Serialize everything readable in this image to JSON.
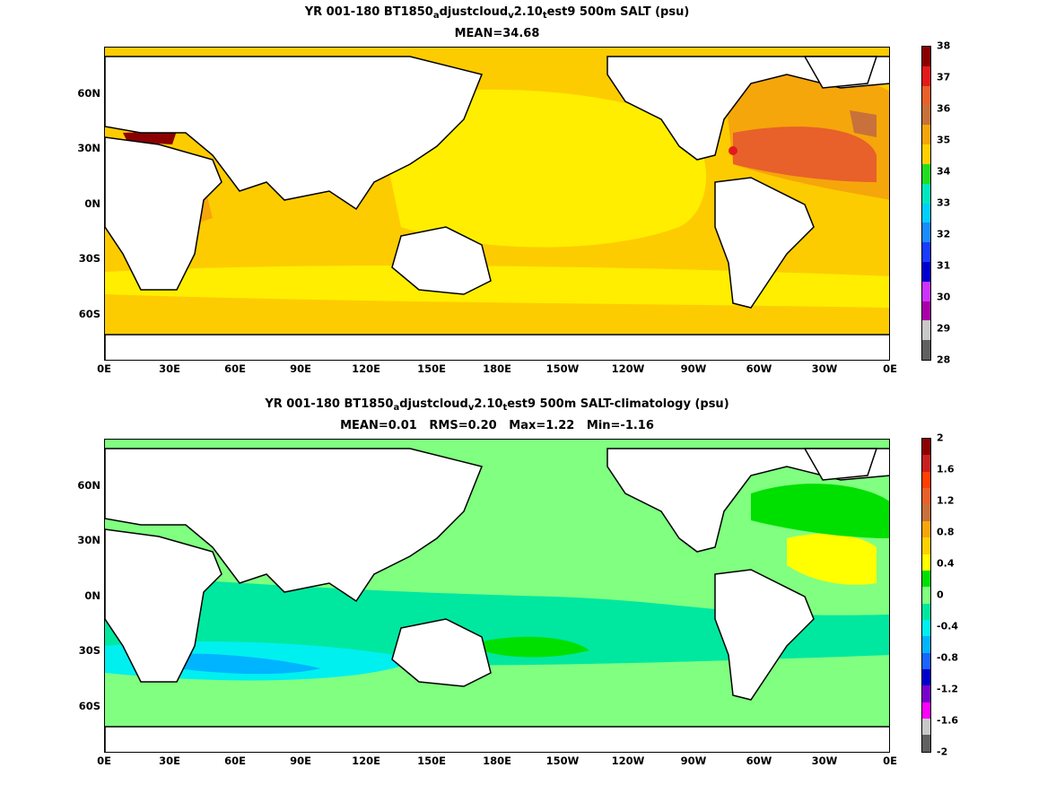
{
  "top": {
    "title_parts": [
      "YR 001-180 BT1850",
      "a",
      "djustcloud",
      "v",
      "2.10",
      "t",
      "est9 500m SALT (psu)"
    ],
    "stats": "MEAN=34.68",
    "colorbar_labels": [
      "38",
      "37",
      "36",
      "35",
      "34",
      "33",
      "32",
      "31",
      "30",
      "29",
      "28"
    ],
    "colorbar_colors": [
      "#8b0000",
      "#e31a1c",
      "#e8602a",
      "#c8713a",
      "#f5a60a",
      "#ffd000",
      "#22dd22",
      "#00e8c0",
      "#00d0ff",
      "#1a8cff",
      "#1a3cff",
      "#0000d0",
      "#cc33ff",
      "#aa00aa",
      "#c8c8c8",
      "#606060"
    ]
  },
  "bottom": {
    "title_parts": [
      "YR 001-180 BT1850",
      "a",
      "djustcloud",
      "v",
      "2.10",
      "t",
      "est9 500m SALT-climatology (psu)"
    ],
    "stats": "MEAN=0.01   RMS=0.20   Max=1.22   Min=-1.16",
    "colorbar_labels": [
      "2",
      "1.6",
      "1.2",
      "0.8",
      "0.4",
      "0",
      "-0.4",
      "-0.8",
      "-1.2",
      "-1.6",
      "-2"
    ],
    "colorbar_colors": [
      "#8b0000",
      "#c82020",
      "#ff4000",
      "#e8602a",
      "#c8713a",
      "#f5a60a",
      "#ffd000",
      "#ffff00",
      "#00e000",
      "#80ff80",
      "#00e8a0",
      "#00f0f0",
      "#00b4ff",
      "#1a64ff",
      "#0000cc",
      "#7a00cc",
      "#ff00ff",
      "#c8c8c8",
      "#606060"
    ]
  },
  "x_ticks": [
    "0E",
    "30E",
    "60E",
    "90E",
    "120E",
    "150E",
    "180E",
    "150W",
    "120W",
    "90W",
    "60W",
    "30W",
    "0E"
  ],
  "y_ticks": [
    "60N",
    "30N",
    "0N",
    "30S",
    "60S"
  ],
  "colors": {
    "land": "#ffffff",
    "coast": "#000000",
    "top_ocean_base": "#fdcc00",
    "top_ocean_yellow": "#ffee00",
    "top_atlantic_high": "#f5a60a",
    "top_atlantic_max": "#e8602a",
    "bottom_ocean_base": "#80ff80",
    "bottom_ocean_teal": "#00e8a0",
    "bottom_ocean_cyan": "#00f0f0",
    "bottom_ocean_blue": "#00b4ff",
    "bottom_ocean_yellow": "#ffff00"
  }
}
